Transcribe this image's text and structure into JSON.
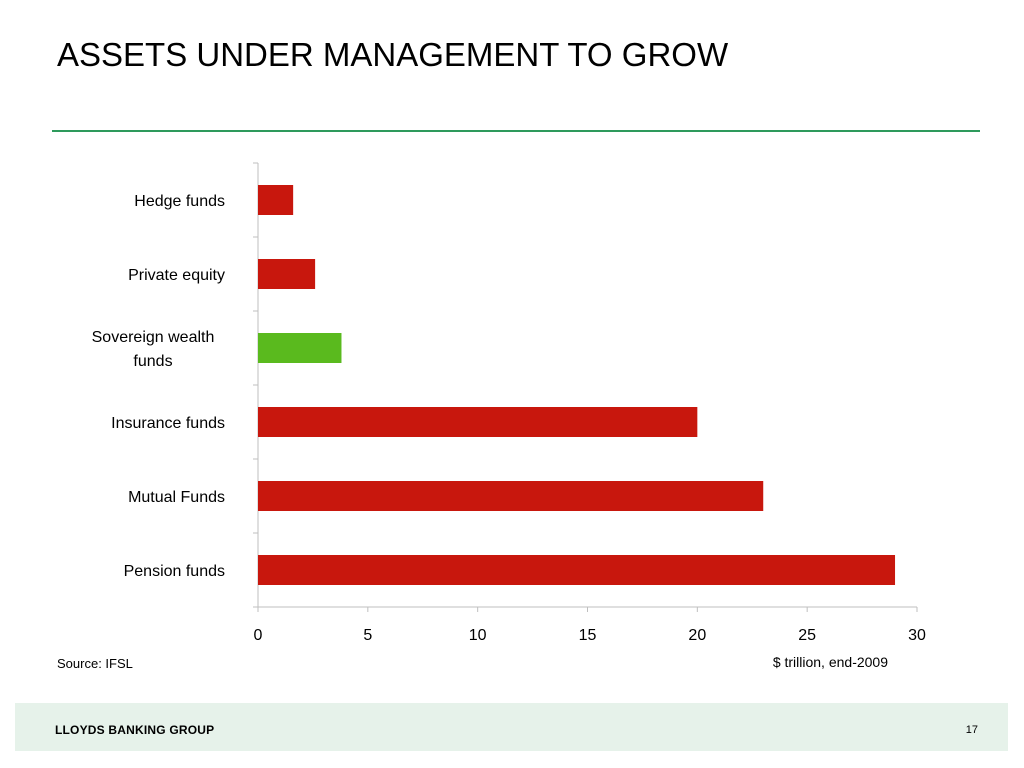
{
  "title": "ASSETS UNDER MANAGEMENT TO GROW",
  "source": "Source: IFSL",
  "footer": {
    "brand": "LLOYDS BANKING GROUP",
    "page_number": "17"
  },
  "colors": {
    "bar": "#c8170d",
    "highlight": "#5aba1e",
    "rule": "#2e9a5c",
    "axis": "#bfbfbf"
  },
  "chart_data": {
    "type": "bar",
    "orientation": "horizontal",
    "categories": [
      "Hedge funds",
      "Private equity",
      "Sovereign wealth funds",
      "Insurance funds",
      "Mutual Funds",
      "Pension funds"
    ],
    "values": [
      1.6,
      2.6,
      3.8,
      20,
      23,
      29
    ],
    "highlight_category": "Sovereign wealth funds",
    "xlabel": "$ trillion, end-2009",
    "xlim": [
      0,
      30
    ],
    "xticks": [
      "0",
      "5",
      "10",
      "15",
      "20",
      "25",
      "30"
    ],
    "grid": false,
    "legend": "none"
  }
}
